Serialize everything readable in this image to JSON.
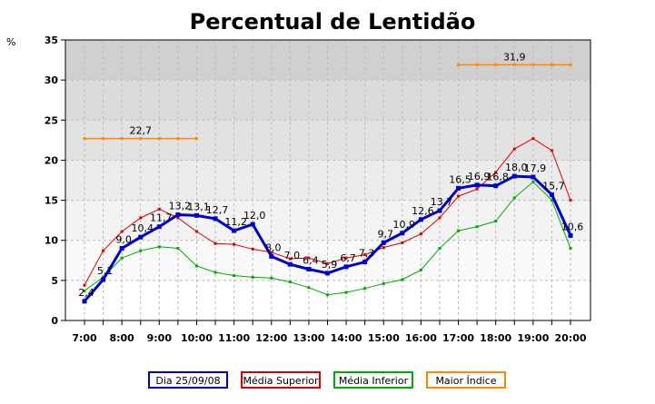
{
  "chart_data": {
    "type": "line",
    "title": "Percentual de Lentidão",
    "ylabel": "%",
    "xlabel": "",
    "ylim": [
      0,
      35
    ],
    "yticks": [
      "0",
      "5",
      "10",
      "15",
      "20",
      "25",
      "30",
      "35"
    ],
    "xtick_labels": [
      "7:00",
      "8:00",
      "9:00",
      "10:00",
      "11:00",
      "12:00",
      "13:00",
      "14:00",
      "15:00",
      "16:00",
      "17:00",
      "18:00",
      "19:00",
      "20:00"
    ],
    "x": [
      "7:00",
      "7:30",
      "8:00",
      "8:30",
      "9:00",
      "9:30",
      "10:00",
      "10:30",
      "11:00",
      "11:30",
      "12:00",
      "12:30",
      "13:00",
      "13:30",
      "14:00",
      "14:30",
      "15:00",
      "15:30",
      "16:00",
      "16:30",
      "17:00",
      "17:30",
      "18:00",
      "18:30",
      "19:00",
      "19:30",
      "20:00"
    ],
    "grid": true,
    "legend_position": "bottom",
    "series": [
      {
        "name": "Dia 25/09/08",
        "color": "#0000cc",
        "values": [
          2.4,
          5.1,
          9.0,
          10.4,
          11.7,
          13.2,
          13.1,
          12.7,
          11.2,
          12.0,
          8.0,
          7.0,
          6.4,
          5.9,
          6.7,
          7.3,
          9.7,
          10.9,
          12.6,
          13.7,
          16.5,
          16.9,
          16.8,
          18.0,
          17.9,
          15.7,
          10.6
        ],
        "labels": [
          "2,4",
          "5,1",
          "9,0",
          "10,4",
          "11,7",
          "13,2",
          "13,1",
          "12,7",
          "11,2",
          "12,0",
          "8,0",
          "7,0",
          "6,4",
          "5,9",
          "6,7",
          "7,3",
          "9,7",
          "10,9",
          "12,6",
          "13,7",
          "16,5",
          "16,9",
          "16,8",
          "18,0",
          "17,9",
          "15,7",
          "10,6"
        ]
      },
      {
        "name": "Média Superior",
        "color": "#dd0000",
        "values": [
          4.4,
          8.7,
          11.1,
          12.8,
          13.9,
          12.8,
          11.1,
          9.6,
          9.5,
          8.9,
          8.5,
          7.7,
          7.8,
          7.1,
          7.8,
          8.2,
          9.1,
          9.7,
          10.8,
          12.8,
          15.5,
          16.4,
          18.5,
          21.4,
          22.7,
          21.2,
          15.0
        ]
      },
      {
        "name": "Média Inferior",
        "color": "#00aa00",
        "values": [
          3.7,
          5.4,
          7.8,
          8.7,
          9.2,
          9.0,
          6.8,
          6.0,
          5.6,
          5.4,
          5.3,
          4.8,
          4.1,
          3.2,
          3.5,
          4.0,
          4.6,
          5.1,
          6.3,
          9.0,
          11.2,
          11.7,
          12.4,
          15.3,
          17.3,
          15.0,
          9.0
        ]
      },
      {
        "name": "Maior Índice",
        "color": "#ff8800",
        "segments": [
          {
            "from": 0,
            "to": 6,
            "value": 22.7,
            "label": "22,7"
          },
          {
            "from": 20,
            "to": 26,
            "value": 31.9,
            "label": "31,9"
          }
        ]
      }
    ]
  }
}
